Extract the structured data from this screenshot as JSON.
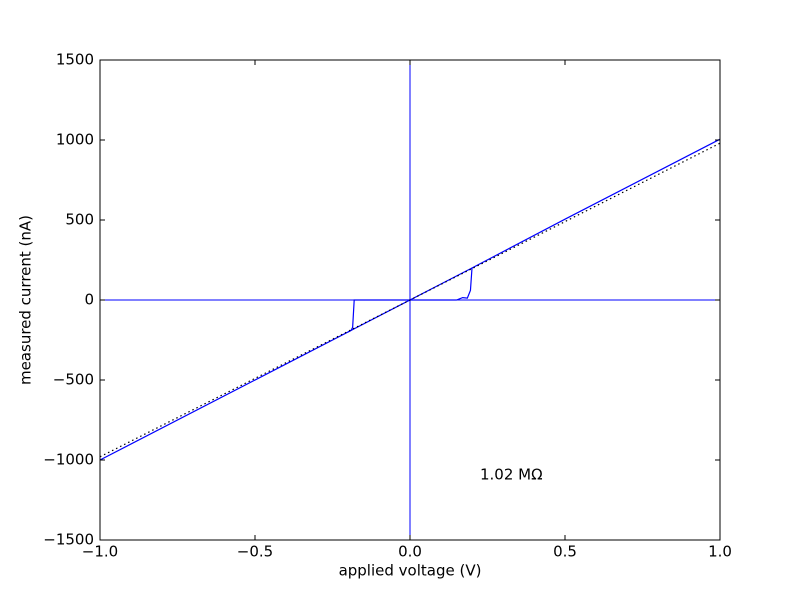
{
  "chart_data": {
    "type": "line",
    "xlabel": "applied voltage (V)",
    "ylabel": "measured current (nA)",
    "annotation": "1.02 MΩ",
    "xlim": [
      -1,
      1
    ],
    "ylim": [
      -1500,
      1500
    ],
    "xticks": [
      {
        "value": -1,
        "label": "−1.0"
      },
      {
        "value": -0.5,
        "label": "−0.5"
      },
      {
        "value": 0,
        "label": "0.0"
      },
      {
        "value": 0.5,
        "label": "0.5"
      },
      {
        "value": 1,
        "label": "1.0"
      }
    ],
    "yticks": [
      {
        "value": -1500,
        "label": "−1500"
      },
      {
        "value": -1000,
        "label": "−1000"
      },
      {
        "value": -500,
        "label": "−500"
      },
      0,
      500,
      1000,
      1500
    ],
    "zero_lines": "#0000ff",
    "series": [
      {
        "color": "#0000ff",
        "style": "solid",
        "x": [
          -1,
          -0.19,
          -0.185,
          -0.18,
          0,
          0.15,
          0.17,
          0.185,
          0.195,
          0.2,
          0.5,
          1,
          0.2,
          -0.2,
          0.2
        ],
        "values": [
          -1000,
          -190,
          -170,
          0,
          0,
          0,
          15,
          12,
          60,
          200,
          505,
          1005,
          null,
          -200,
          200
        ]
      },
      {
        "color": "#000000",
        "style": "dotted",
        "x": [
          -1,
          1
        ],
        "values": [
          -980,
          980
        ]
      }
    ]
  }
}
